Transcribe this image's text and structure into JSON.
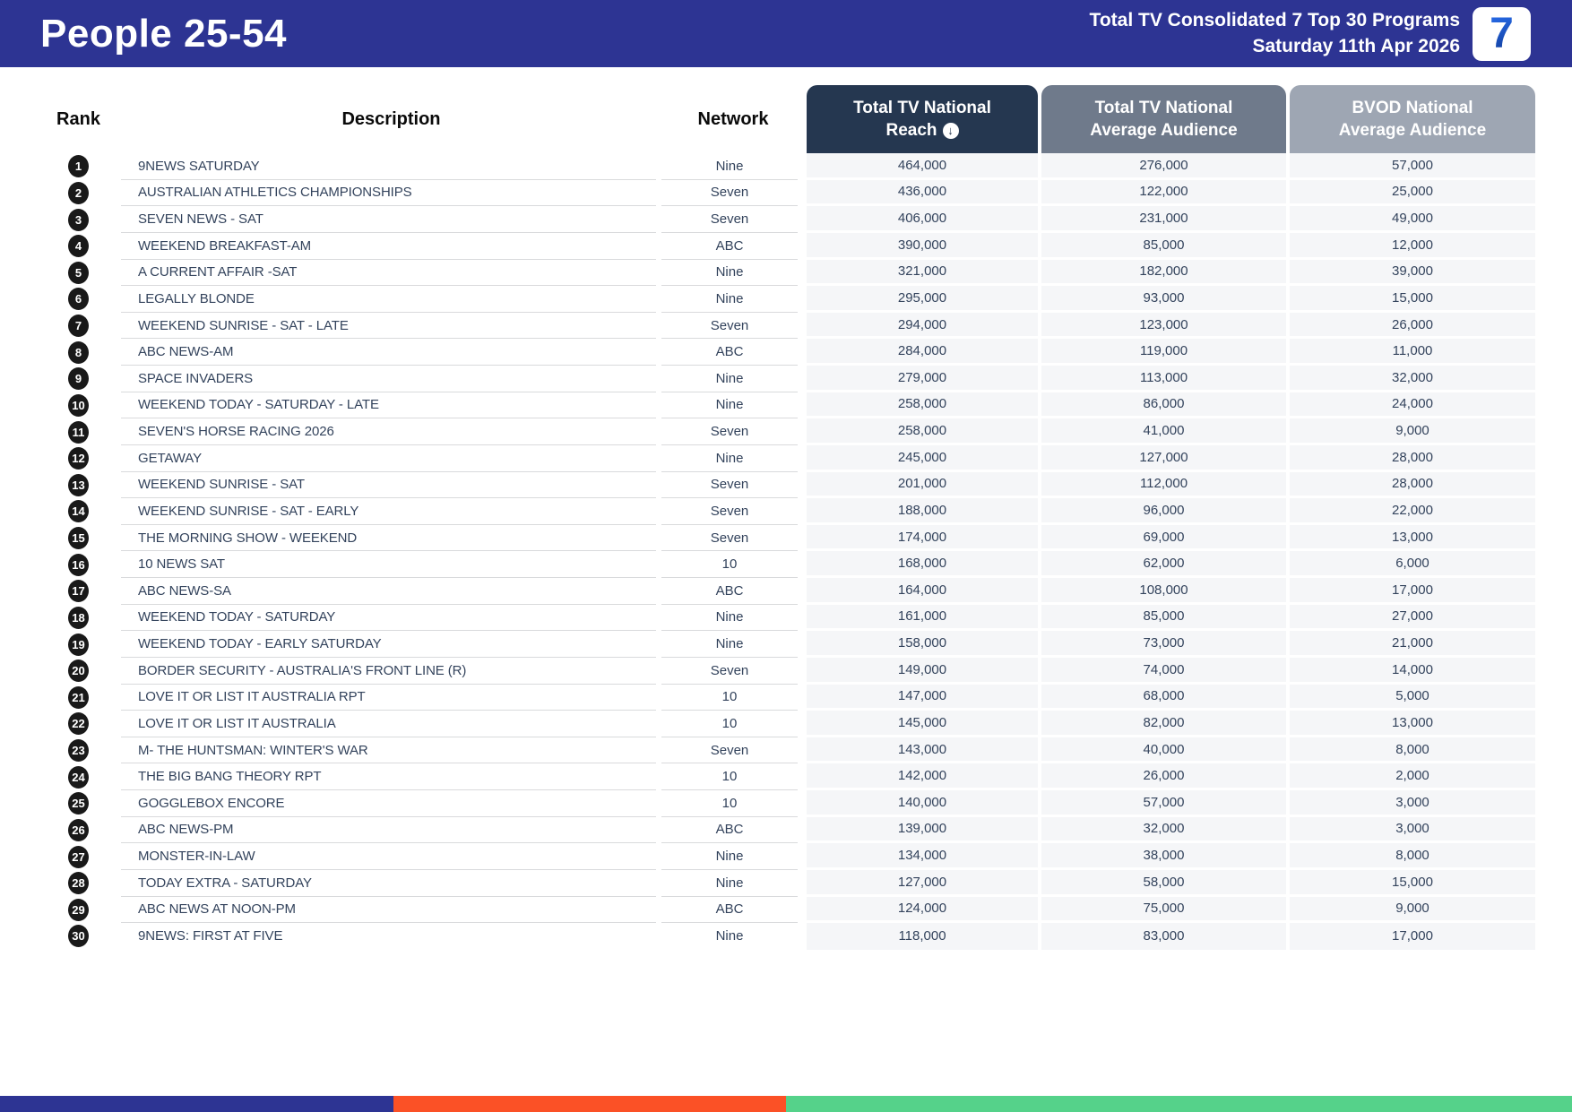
{
  "header": {
    "title": "People 25-54",
    "subtitle_line1": "Total TV Consolidated 7 Top 30 Programs",
    "subtitle_line2": "Saturday 11th Apr 2026",
    "logo_text": "7"
  },
  "table": {
    "columns": {
      "rank": "Rank",
      "description": "Description",
      "network": "Network",
      "reach_line1": "Total TV National",
      "reach_line2": "Reach",
      "avg_line1": "Total TV National",
      "avg_line2": "Average Audience",
      "bvod_line1": "BVOD National",
      "bvod_line2": "Average Audience"
    },
    "sort_icon": "↓",
    "rows": [
      {
        "rank": "1",
        "description": "9NEWS SATURDAY",
        "network": "Nine",
        "reach": "464,000",
        "avg_audience": "276,000",
        "bvod_audience": "57,000"
      },
      {
        "rank": "2",
        "description": "AUSTRALIAN ATHLETICS CHAMPIONSHIPS",
        "network": "Seven",
        "reach": "436,000",
        "avg_audience": "122,000",
        "bvod_audience": "25,000"
      },
      {
        "rank": "3",
        "description": "SEVEN NEWS - SAT",
        "network": "Seven",
        "reach": "406,000",
        "avg_audience": "231,000",
        "bvod_audience": "49,000"
      },
      {
        "rank": "4",
        "description": "WEEKEND BREAKFAST-AM",
        "network": "ABC",
        "reach": "390,000",
        "avg_audience": "85,000",
        "bvod_audience": "12,000"
      },
      {
        "rank": "5",
        "description": "A CURRENT AFFAIR -SAT",
        "network": "Nine",
        "reach": "321,000",
        "avg_audience": "182,000",
        "bvod_audience": "39,000"
      },
      {
        "rank": "6",
        "description": "LEGALLY BLONDE",
        "network": "Nine",
        "reach": "295,000",
        "avg_audience": "93,000",
        "bvod_audience": "15,000"
      },
      {
        "rank": "7",
        "description": "WEEKEND SUNRISE - SAT - LATE",
        "network": "Seven",
        "reach": "294,000",
        "avg_audience": "123,000",
        "bvod_audience": "26,000"
      },
      {
        "rank": "8",
        "description": "ABC NEWS-AM",
        "network": "ABC",
        "reach": "284,000",
        "avg_audience": "119,000",
        "bvod_audience": "11,000"
      },
      {
        "rank": "9",
        "description": "SPACE INVADERS",
        "network": "Nine",
        "reach": "279,000",
        "avg_audience": "113,000",
        "bvod_audience": "32,000"
      },
      {
        "rank": "10",
        "description": "WEEKEND TODAY - SATURDAY - LATE",
        "network": "Nine",
        "reach": "258,000",
        "avg_audience": "86,000",
        "bvod_audience": "24,000"
      },
      {
        "rank": "11",
        "description": "SEVEN'S HORSE RACING 2026",
        "network": "Seven",
        "reach": "258,000",
        "avg_audience": "41,000",
        "bvod_audience": "9,000"
      },
      {
        "rank": "12",
        "description": "GETAWAY",
        "network": "Nine",
        "reach": "245,000",
        "avg_audience": "127,000",
        "bvod_audience": "28,000"
      },
      {
        "rank": "13",
        "description": "WEEKEND SUNRISE - SAT",
        "network": "Seven",
        "reach": "201,000",
        "avg_audience": "112,000",
        "bvod_audience": "28,000"
      },
      {
        "rank": "14",
        "description": "WEEKEND SUNRISE - SAT - EARLY",
        "network": "Seven",
        "reach": "188,000",
        "avg_audience": "96,000",
        "bvod_audience": "22,000"
      },
      {
        "rank": "15",
        "description": "THE MORNING SHOW - WEEKEND",
        "network": "Seven",
        "reach": "174,000",
        "avg_audience": "69,000",
        "bvod_audience": "13,000"
      },
      {
        "rank": "16",
        "description": "10 NEWS SAT",
        "network": "10",
        "reach": "168,000",
        "avg_audience": "62,000",
        "bvod_audience": "6,000"
      },
      {
        "rank": "17",
        "description": "ABC NEWS-SA",
        "network": "ABC",
        "reach": "164,000",
        "avg_audience": "108,000",
        "bvod_audience": "17,000"
      },
      {
        "rank": "18",
        "description": "WEEKEND TODAY - SATURDAY",
        "network": "Nine",
        "reach": "161,000",
        "avg_audience": "85,000",
        "bvod_audience": "27,000"
      },
      {
        "rank": "19",
        "description": "WEEKEND TODAY - EARLY SATURDAY",
        "network": "Nine",
        "reach": "158,000",
        "avg_audience": "73,000",
        "bvod_audience": "21,000"
      },
      {
        "rank": "20",
        "description": "BORDER SECURITY - AUSTRALIA'S FRONT LINE (R)",
        "network": "Seven",
        "reach": "149,000",
        "avg_audience": "74,000",
        "bvod_audience": "14,000"
      },
      {
        "rank": "21",
        "description": "LOVE IT OR LIST IT AUSTRALIA RPT",
        "network": "10",
        "reach": "147,000",
        "avg_audience": "68,000",
        "bvod_audience": "5,000"
      },
      {
        "rank": "22",
        "description": "LOVE IT OR LIST IT AUSTRALIA",
        "network": "10",
        "reach": "145,000",
        "avg_audience": "82,000",
        "bvod_audience": "13,000"
      },
      {
        "rank": "23",
        "description": "M- THE HUNTSMAN: WINTER'S WAR",
        "network": "Seven",
        "reach": "143,000",
        "avg_audience": "40,000",
        "bvod_audience": "8,000"
      },
      {
        "rank": "24",
        "description": "THE BIG BANG THEORY RPT",
        "network": "10",
        "reach": "142,000",
        "avg_audience": "26,000",
        "bvod_audience": "2,000"
      },
      {
        "rank": "25",
        "description": "GOGGLEBOX ENCORE",
        "network": "10",
        "reach": "140,000",
        "avg_audience": "57,000",
        "bvod_audience": "3,000"
      },
      {
        "rank": "26",
        "description": "ABC NEWS-PM",
        "network": "ABC",
        "reach": "139,000",
        "avg_audience": "32,000",
        "bvod_audience": "3,000"
      },
      {
        "rank": "27",
        "description": "MONSTER-IN-LAW",
        "network": "Nine",
        "reach": "134,000",
        "avg_audience": "38,000",
        "bvod_audience": "8,000"
      },
      {
        "rank": "28",
        "description": "TODAY EXTRA - SATURDAY",
        "network": "Nine",
        "reach": "127,000",
        "avg_audience": "58,000",
        "bvod_audience": "15,000"
      },
      {
        "rank": "29",
        "description": "ABC NEWS AT NOON-PM",
        "network": "ABC",
        "reach": "124,000",
        "avg_audience": "75,000",
        "bvod_audience": "9,000"
      },
      {
        "rank": "30",
        "description": "9NEWS: FIRST AT FIVE",
        "network": "Nine",
        "reach": "118,000",
        "avg_audience": "83,000",
        "bvod_audience": "17,000"
      }
    ]
  },
  "footer": {
    "segments": [
      {
        "color": "#2D3493",
        "width": "25%"
      },
      {
        "color": "#FB5126",
        "width": "25%"
      },
      {
        "color": "#55D28A",
        "width": "50%"
      }
    ]
  },
  "colors": {
    "header_blue": "#2D3493",
    "reach_header": "#253750",
    "avg_header": "#6F7A8B",
    "bvod_header": "#9EA6B3",
    "text_dark": "#33435C",
    "cell_bg": "#f5f6f8",
    "logo_blue": "#1A52C4"
  }
}
